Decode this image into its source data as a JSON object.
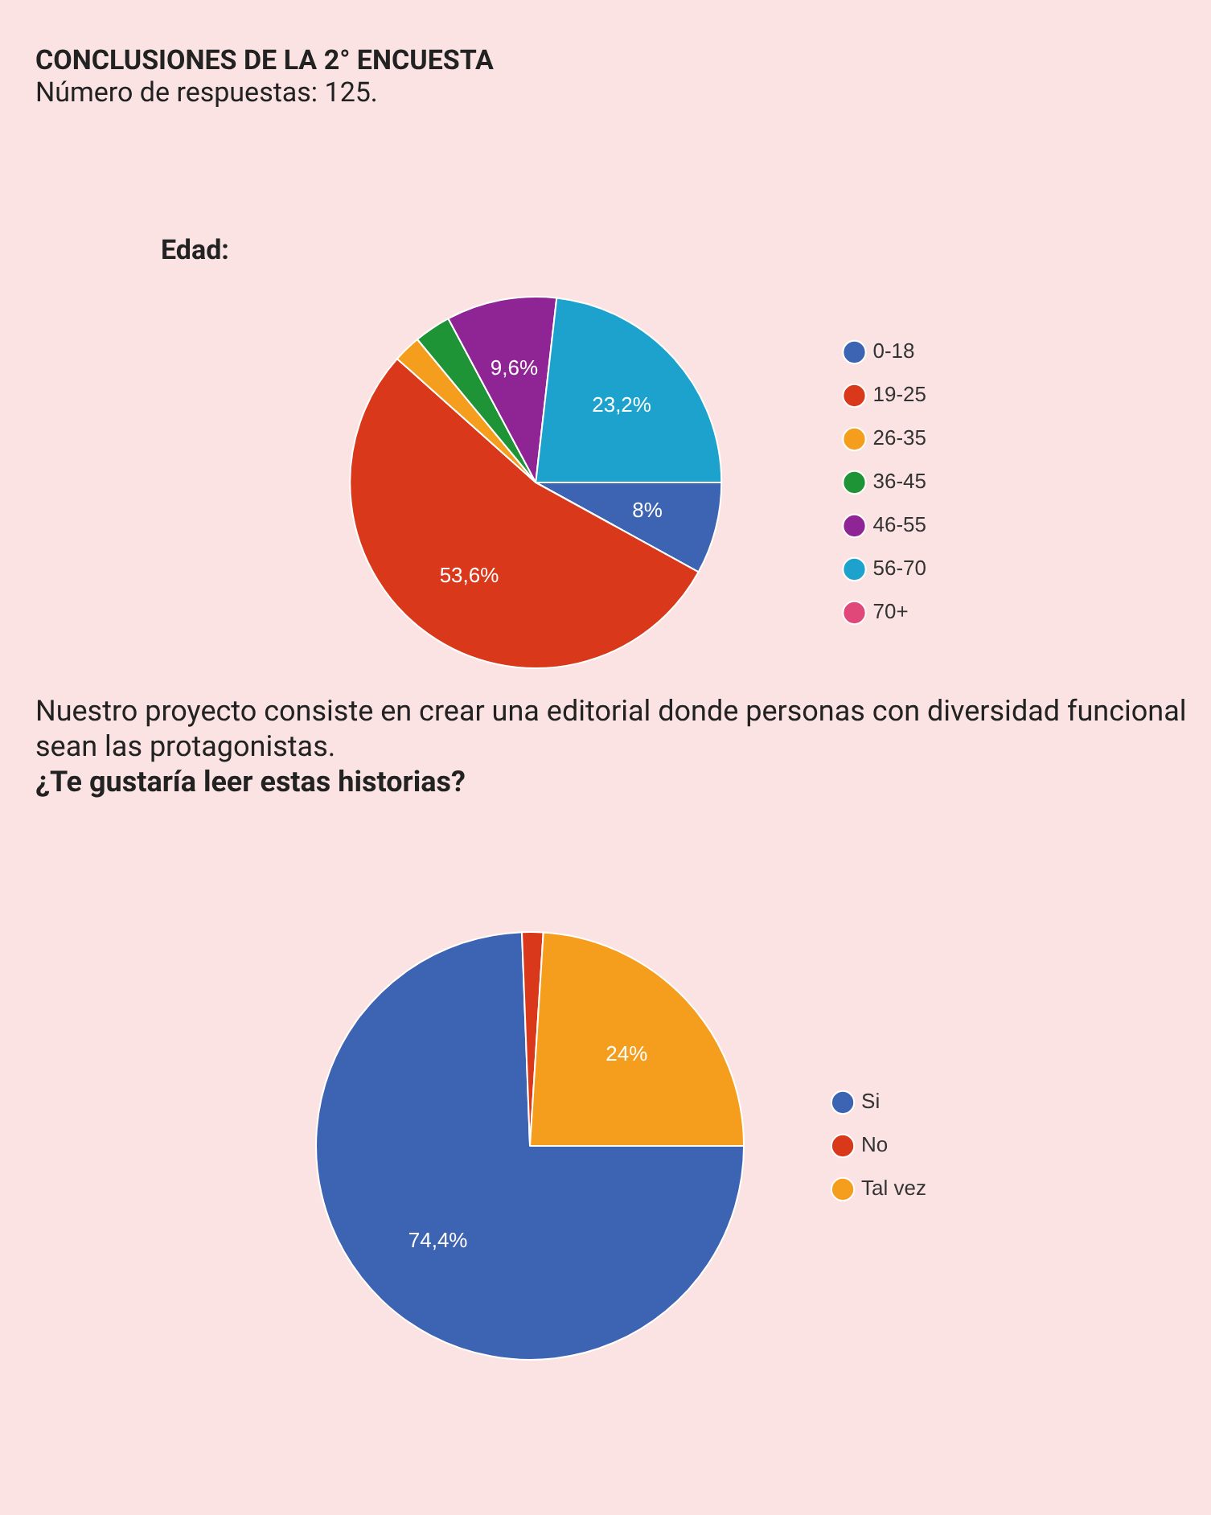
{
  "chart_data": [
    {
      "type": "pie",
      "title": "CONCLUSIONES DE LA 2° ENCUESTA",
      "subtitle": "Número de respuestas: 125.",
      "annotations": [
        "Edad:"
      ],
      "categories": [
        "0-18",
        "19-25",
        "26-35",
        "36-45",
        "46-55",
        "56-70",
        "70+"
      ],
      "values": [
        8,
        53.6,
        2.4,
        3.2,
        9.6,
        23.2,
        0
      ],
      "colors": [
        "#3d63b3",
        "#d9391a",
        "#f59d1d",
        "#1e9436",
        "#8f2594",
        "#1ca2cc",
        "#e0487a"
      ],
      "value_labels": [
        "8%",
        "53,6%",
        null,
        null,
        "9,6%",
        "23,2%",
        null
      ],
      "legend": "right"
    },
    {
      "type": "pie",
      "title": "Nuestro proyecto consiste en crear una editorial donde personas con diversidad funcional sean las protagonistas.",
      "subtitle": "¿Te gustaría leer estas historias?",
      "categories": [
        "Si",
        "No",
        "Tal vez"
      ],
      "values": [
        74.4,
        1.6,
        24
      ],
      "colors": [
        "#3d63b3",
        "#d9391a",
        "#f59d1d"
      ],
      "value_labels": [
        "74,4%",
        null,
        "24%"
      ],
      "legend": "right"
    }
  ]
}
